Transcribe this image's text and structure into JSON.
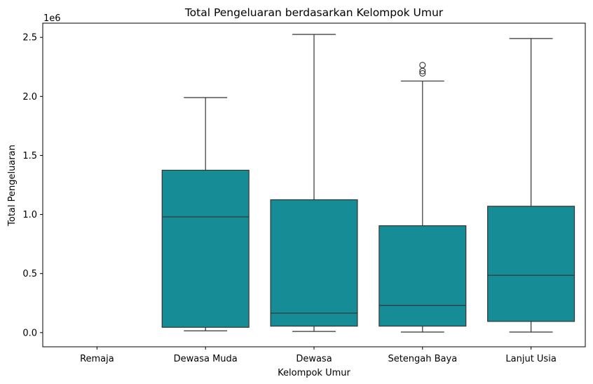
{
  "chart_data": {
    "type": "box",
    "title": "Total Pengeluaran berdasarkan Kelompok Umur",
    "xlabel": "Kelompok Umur",
    "ylabel": "Total Pengeluaran",
    "y_offset_label": "1e6",
    "ylim": [
      -0.12,
      2.62
    ],
    "y_ticks": [
      0.0,
      0.5,
      1.0,
      1.5,
      2.0,
      2.5
    ],
    "y_tick_labels": [
      "0.0",
      "0.5",
      "1.0",
      "1.5",
      "2.0",
      "2.5"
    ],
    "grid": false,
    "legend": "none",
    "box_color": "#168d96",
    "line_color": "#333333",
    "categories": [
      "Remaja",
      "Dewasa Muda",
      "Dewasa",
      "Setengah Baya",
      "Lanjut Usia"
    ],
    "boxes": [
      {
        "category": "Remaja",
        "whisker_low": null,
        "q1": null,
        "median": null,
        "q3": null,
        "whisker_high": null,
        "outliers": []
      },
      {
        "category": "Dewasa Muda",
        "whisker_low": 0.015,
        "q1": 0.045,
        "median": 0.98,
        "q3": 1.375,
        "whisker_high": 1.99,
        "outliers": []
      },
      {
        "category": "Dewasa",
        "whisker_low": 0.01,
        "q1": 0.055,
        "median": 0.165,
        "q3": 1.125,
        "whisker_high": 2.525,
        "outliers": []
      },
      {
        "category": "Setengah Baya",
        "whisker_low": 0.005,
        "q1": 0.055,
        "median": 0.23,
        "q3": 0.905,
        "whisker_high": 2.13,
        "outliers": [
          2.195,
          2.215,
          2.265
        ]
      },
      {
        "category": "Lanjut Usia",
        "whisker_low": 0.005,
        "q1": 0.095,
        "median": 0.485,
        "q3": 1.07,
        "whisker_high": 2.49,
        "outliers": []
      }
    ]
  }
}
